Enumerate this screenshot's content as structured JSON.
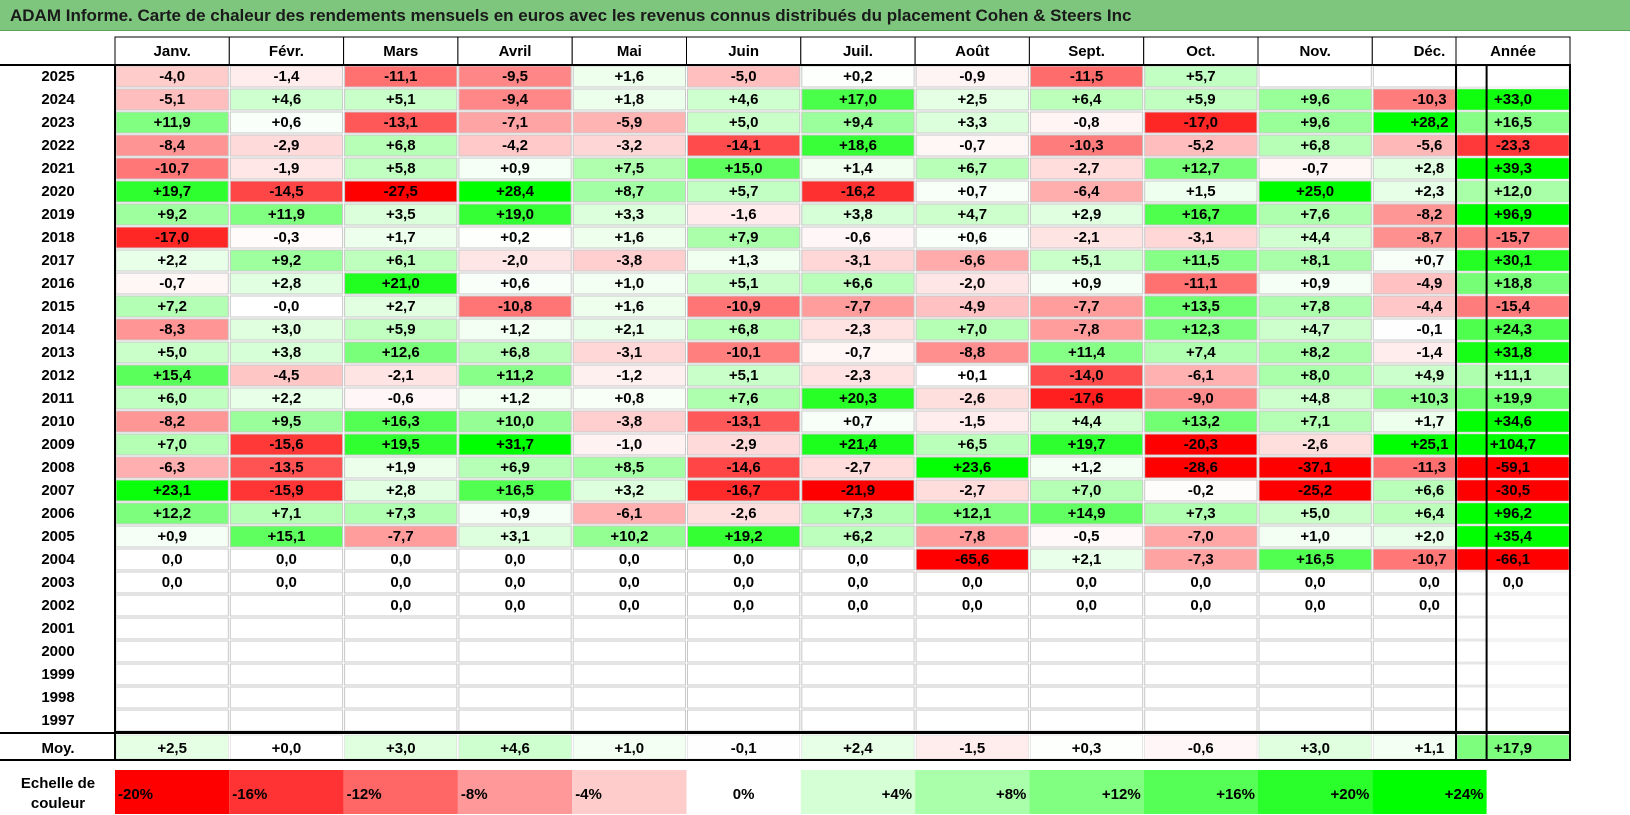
{
  "title": "ADAM Informe. Carte de chaleur des rendements mensuels en euros avec les revenus connus distribués du placement Cohen & Steers Inc",
  "chart_data": {
    "type": "heatmap",
    "months": [
      "Janv.",
      "Févr.",
      "Mars",
      "Avril",
      "Mai",
      "Juin",
      "Juil.",
      "Août",
      "Sept.",
      "Oct.",
      "Nov.",
      "Déc."
    ],
    "annual_label": "Année",
    "rows": [
      {
        "year": "2025",
        "values": [
          "-4,0",
          "-1,4",
          "-11,1",
          "-9,5",
          "+1,6",
          "-5,0",
          "+0,2",
          "-0,9",
          "-11,5",
          "+5,7",
          "",
          ""
        ],
        "annual": ""
      },
      {
        "year": "2024",
        "values": [
          "-5,1",
          "+4,6",
          "+5,1",
          "-9,4",
          "+1,8",
          "+4,6",
          "+17,0",
          "+2,5",
          "+6,4",
          "+5,9",
          "+9,6",
          "-10,3"
        ],
        "annual": "+33,0"
      },
      {
        "year": "2023",
        "values": [
          "+11,9",
          "+0,6",
          "-13,1",
          "-7,1",
          "-5,9",
          "+5,0",
          "+9,4",
          "+3,3",
          "-0,8",
          "-17,0",
          "+9,6",
          "+28,2"
        ],
        "annual": "+16,5"
      },
      {
        "year": "2022",
        "values": [
          "-8,4",
          "-2,9",
          "+6,8",
          "-4,2",
          "-3,2",
          "-14,1",
          "+18,6",
          "-0,7",
          "-10,3",
          "-5,2",
          "+6,8",
          "-5,6"
        ],
        "annual": "-23,3"
      },
      {
        "year": "2021",
        "values": [
          "-10,7",
          "-1,9",
          "+5,8",
          "+0,9",
          "+7,5",
          "+15,0",
          "+1,4",
          "+6,7",
          "-2,7",
          "+12,7",
          "-0,7",
          "+2,8"
        ],
        "annual": "+39,3"
      },
      {
        "year": "2020",
        "values": [
          "+19,7",
          "-14,5",
          "-27,5",
          "+28,4",
          "+8,7",
          "+5,7",
          "-16,2",
          "+0,7",
          "-6,4",
          "+1,5",
          "+25,0",
          "+2,3"
        ],
        "annual": "+12,0"
      },
      {
        "year": "2019",
        "values": [
          "+9,2",
          "+11,9",
          "+3,5",
          "+19,0",
          "+3,3",
          "-1,6",
          "+3,8",
          "+4,7",
          "+2,9",
          "+16,7",
          "+7,6",
          "-8,2"
        ],
        "annual": "+96,9"
      },
      {
        "year": "2018",
        "values": [
          "-17,0",
          "-0,3",
          "+1,7",
          "+0,2",
          "+1,6",
          "+7,9",
          "-0,6",
          "+0,6",
          "-2,1",
          "-3,1",
          "+4,4",
          "-8,7"
        ],
        "annual": "-15,7"
      },
      {
        "year": "2017",
        "values": [
          "+2,2",
          "+9,2",
          "+6,1",
          "-2,0",
          "-3,8",
          "+1,3",
          "-3,1",
          "-6,6",
          "+5,1",
          "+11,5",
          "+8,1",
          "+0,7"
        ],
        "annual": "+30,1"
      },
      {
        "year": "2016",
        "values": [
          "-0,7",
          "+2,8",
          "+21,0",
          "+0,6",
          "+1,0",
          "+5,1",
          "+6,6",
          "-2,0",
          "+0,9",
          "-11,1",
          "+0,9",
          "-4,9"
        ],
        "annual": "+18,8"
      },
      {
        "year": "2015",
        "values": [
          "+7,2",
          "-0,0",
          "+2,7",
          "-10,8",
          "+1,6",
          "-10,9",
          "-7,7",
          "-4,9",
          "-7,7",
          "+13,5",
          "+7,8",
          "-4,4"
        ],
        "annual": "-15,4"
      },
      {
        "year": "2014",
        "values": [
          "-8,3",
          "+3,0",
          "+5,9",
          "+1,2",
          "+2,1",
          "+6,8",
          "-2,3",
          "+7,0",
          "-7,8",
          "+12,3",
          "+4,7",
          "-0,1"
        ],
        "annual": "+24,3"
      },
      {
        "year": "2013",
        "values": [
          "+5,0",
          "+3,8",
          "+12,6",
          "+6,8",
          "-3,1",
          "-10,1",
          "-0,7",
          "-8,8",
          "+11,4",
          "+7,4",
          "+8,2",
          "-1,4"
        ],
        "annual": "+31,8"
      },
      {
        "year": "2012",
        "values": [
          "+15,4",
          "-4,5",
          "-2,1",
          "+11,2",
          "-1,2",
          "+5,1",
          "-2,3",
          "+0,1",
          "-14,0",
          "-6,1",
          "+8,0",
          "+4,9"
        ],
        "annual": "+11,1"
      },
      {
        "year": "2011",
        "values": [
          "+6,0",
          "+2,2",
          "-0,6",
          "+1,2",
          "+0,8",
          "+7,6",
          "+20,3",
          "-2,6",
          "-17,6",
          "-9,0",
          "+4,8",
          "+10,3"
        ],
        "annual": "+19,9"
      },
      {
        "year": "2010",
        "values": [
          "-8,2",
          "+9,5",
          "+16,3",
          "+10,0",
          "-3,8",
          "-13,1",
          "+0,7",
          "-1,5",
          "+4,4",
          "+13,2",
          "+7,1",
          "+1,7"
        ],
        "annual": "+34,6"
      },
      {
        "year": "2009",
        "values": [
          "+7,0",
          "-15,6",
          "+19,5",
          "+31,7",
          "-1,0",
          "-2,9",
          "+21,4",
          "+6,5",
          "+19,7",
          "-20,3",
          "-2,6",
          "+25,1"
        ],
        "annual": "+104,7"
      },
      {
        "year": "2008",
        "values": [
          "-6,3",
          "-13,5",
          "+1,9",
          "+6,9",
          "+8,5",
          "-14,6",
          "-2,7",
          "+23,6",
          "+1,2",
          "-28,6",
          "-37,1",
          "-11,3"
        ],
        "annual": "-59,1"
      },
      {
        "year": "2007",
        "values": [
          "+23,1",
          "-15,9",
          "+2,8",
          "+16,5",
          "+3,2",
          "-16,7",
          "-21,9",
          "-2,7",
          "+7,0",
          "-0,2",
          "-25,2",
          "+6,6"
        ],
        "annual": "-30,5"
      },
      {
        "year": "2006",
        "values": [
          "+12,2",
          "+7,1",
          "+7,3",
          "+0,9",
          "-6,1",
          "-2,6",
          "+7,3",
          "+12,1",
          "+14,9",
          "+7,3",
          "+5,0",
          "+6,4"
        ],
        "annual": "+96,2"
      },
      {
        "year": "2005",
        "values": [
          "+0,9",
          "+15,1",
          "-7,7",
          "+3,1",
          "+10,2",
          "+19,2",
          "+6,2",
          "-7,8",
          "-0,5",
          "-7,0",
          "+1,0",
          "+2,0"
        ],
        "annual": "+35,4"
      },
      {
        "year": "2004",
        "values": [
          "0,0",
          "0,0",
          "0,0",
          "0,0",
          "0,0",
          "0,0",
          "0,0",
          "-65,6",
          "+2,1",
          "-7,3",
          "+16,5",
          "-10,7"
        ],
        "annual": "-66,1"
      },
      {
        "year": "2003",
        "values": [
          "0,0",
          "0,0",
          "0,0",
          "0,0",
          "0,0",
          "0,0",
          "0,0",
          "0,0",
          "0,0",
          "0,0",
          "0,0",
          "0,0"
        ],
        "annual": "0,0"
      },
      {
        "year": "2002",
        "values": [
          "",
          "",
          "0,0",
          "0,0",
          "0,0",
          "0,0",
          "0,0",
          "0,0",
          "0,0",
          "0,0",
          "0,0",
          "0,0"
        ],
        "annual": ""
      },
      {
        "year": "2001",
        "values": [
          "",
          "",
          "",
          "",
          "",
          "",
          "",
          "",
          "",
          "",
          "",
          ""
        ],
        "annual": ""
      },
      {
        "year": "2000",
        "values": [
          "",
          "",
          "",
          "",
          "",
          "",
          "",
          "",
          "",
          "",
          "",
          ""
        ],
        "annual": ""
      },
      {
        "year": "1999",
        "values": [
          "",
          "",
          "",
          "",
          "",
          "",
          "",
          "",
          "",
          "",
          "",
          ""
        ],
        "annual": ""
      },
      {
        "year": "1998",
        "values": [
          "",
          "",
          "",
          "",
          "",
          "",
          "",
          "",
          "",
          "",
          "",
          ""
        ],
        "annual": ""
      },
      {
        "year": "1997",
        "values": [
          "",
          "",
          "",
          "",
          "",
          "",
          "",
          "",
          "",
          "",
          "",
          ""
        ],
        "annual": ""
      }
    ],
    "average": {
      "label": "Moy.",
      "values": [
        "+2,5",
        "+0,0",
        "+3,0",
        "+4,6",
        "+1,0",
        "-0,1",
        "+2,4",
        "-1,5",
        "+0,3",
        "-0,6",
        "+3,0",
        "+1,1"
      ],
      "annual": "+17,9"
    },
    "scale": {
      "label_line1": "Echelle de",
      "label_line2": "couleur",
      "labels": [
        "-20%",
        "-16%",
        "-12%",
        "-8%",
        "-4%",
        "0%",
        "+4%",
        "+8%",
        "+12%",
        "+16%",
        "+20%",
        "+24%"
      ],
      "values": [
        -20,
        -16,
        -12,
        -8,
        -4,
        0,
        4,
        8,
        12,
        16,
        20,
        24
      ]
    },
    "colors": {
      "negative_max": "#ff0000",
      "neutral": "#ffffff",
      "positive_max": "#00ff00",
      "title_bar": "#7ec67e"
    }
  }
}
